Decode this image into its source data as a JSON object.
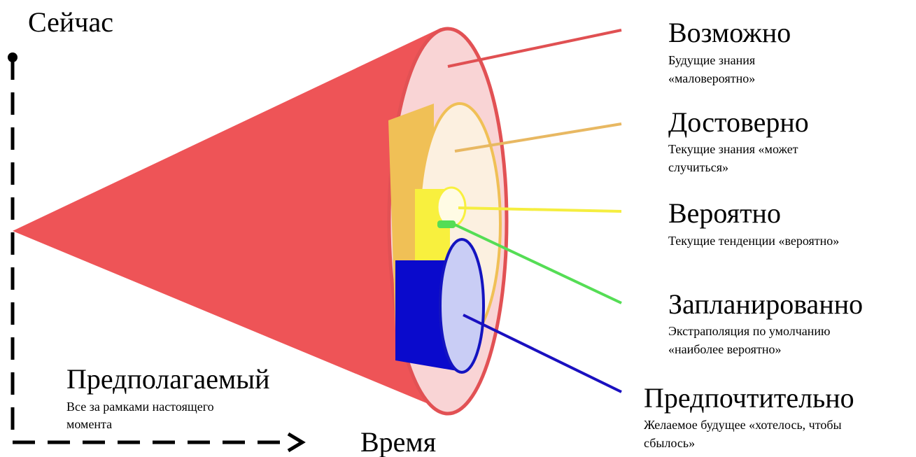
{
  "now_label": "Сейчас",
  "time_label": "Время",
  "assumed": {
    "title": "Предполагаемый",
    "lines": [
      "Все за рамками настоящего",
      "момента"
    ]
  },
  "futures": [
    {
      "title": "Возможно",
      "lines": [
        "Будущие знания",
        "«маловероятно»"
      ]
    },
    {
      "title": "Достоверно",
      "lines": [
        "Текущие знания «может",
        "случиться»"
      ]
    },
    {
      "title": "Вероятно",
      "lines": [
        "Текущие тенденции «вероятно»"
      ]
    },
    {
      "title": "Запланированно",
      "lines": [
        "Экстраполяция по умолчанию",
        "«наиболее вероятно»"
      ]
    },
    {
      "title": "Предпочтительно",
      "lines": [
        "Желаемое будущее «хотелось, чтобы",
        "сбылось»"
      ]
    }
  ]
}
